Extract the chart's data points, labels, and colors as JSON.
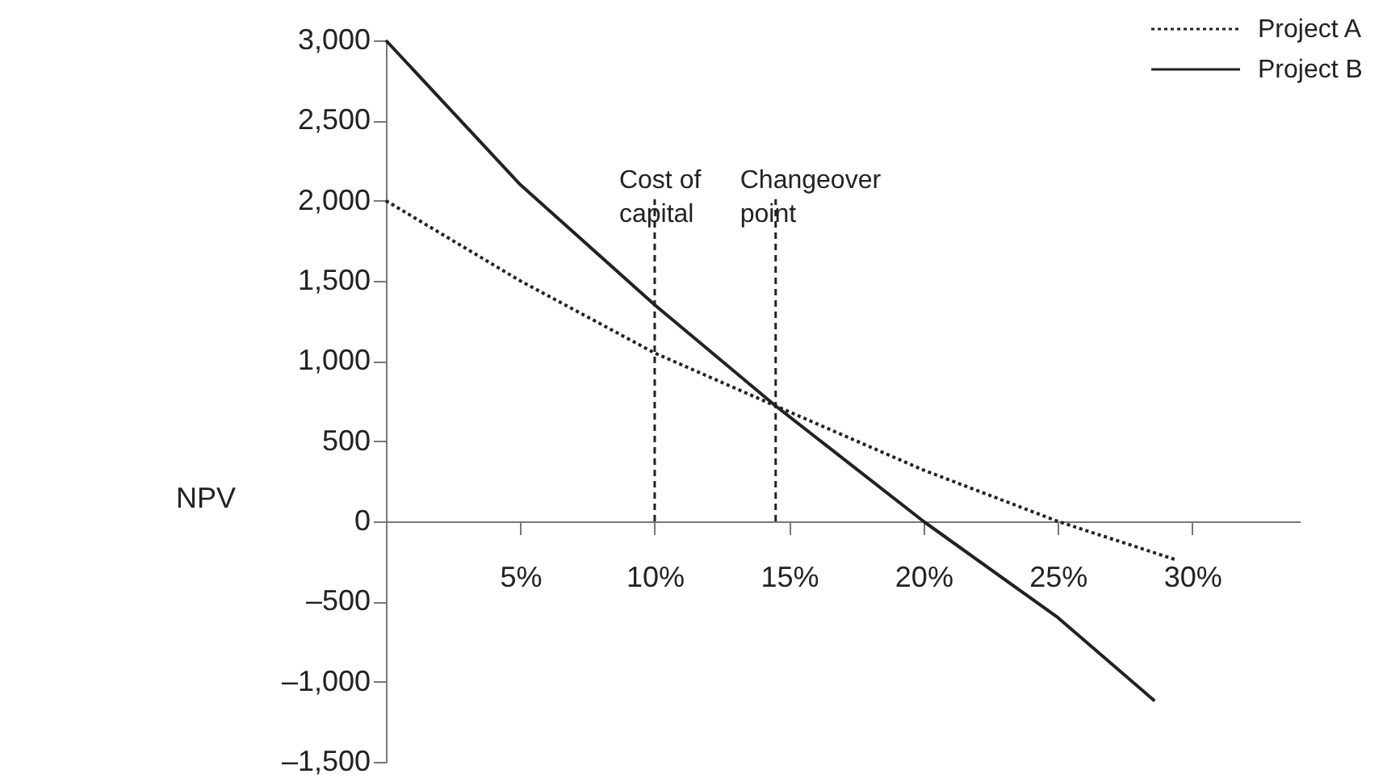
{
  "chart_data": {
    "type": "line",
    "ylabel": "NPV",
    "series": [
      {
        "name": "Project A",
        "color": "#222222",
        "line_style": "dotted",
        "x": [
          0,
          5,
          10,
          14.5,
          20,
          25,
          29.4
        ],
        "values": [
          2000,
          1500,
          1050,
          720,
          320,
          0,
          -240
        ]
      },
      {
        "name": "Project B",
        "color": "#222222",
        "line_style": "solid",
        "x": [
          0,
          5,
          10,
          14.5,
          20,
          25,
          28.6
        ],
        "values": [
          3000,
          2100,
          1350,
          720,
          0,
          -600,
          -1120
        ]
      }
    ],
    "xlim": [
      0,
      34
    ],
    "xticks": [
      {
        "value": 5,
        "label": "5%"
      },
      {
        "value": 10,
        "label": "10%"
      },
      {
        "value": 15,
        "label": "15%"
      },
      {
        "value": 20,
        "label": "20%"
      },
      {
        "value": 25,
        "label": "25%"
      },
      {
        "value": 30,
        "label": "30%"
      }
    ],
    "ylim": [
      -1500,
      3000
    ],
    "yticks": [
      {
        "value": -1500,
        "label": "–1,500"
      },
      {
        "value": -1000,
        "label": "–1,000"
      },
      {
        "value": -500,
        "label": "–500"
      },
      0,
      500,
      {
        "value": 1000,
        "label": "1,000"
      },
      {
        "value": 1500,
        "label": "1,500"
      },
      {
        "value": 2000,
        "label": "2,000"
      },
      {
        "value": 2500,
        "label": "2,500"
      },
      {
        "value": 3000,
        "label": "3,000"
      }
    ],
    "ref_lines": [
      {
        "axis": "x",
        "value": 10,
        "label": "Cost of\ncapital",
        "line_style": "dashed"
      },
      {
        "axis": "x",
        "value": 14.5,
        "label": "Changeover\npoint",
        "line_style": "dashed"
      }
    ],
    "legend": "top right",
    "grid": false,
    "marker": "none"
  }
}
